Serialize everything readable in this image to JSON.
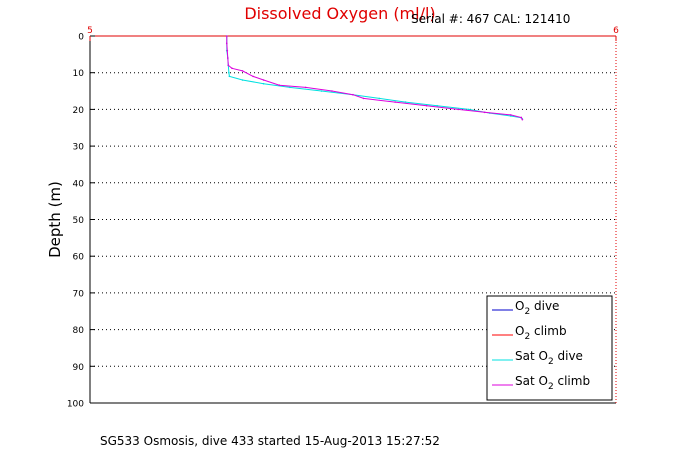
{
  "chart_data": {
    "type": "line",
    "title": "Dissolved Oxygen (ml/l)",
    "serial_text": "Serial #: 467  CAL: 121410",
    "footer": "SG533 Osmosis, dive 433 started 15-Aug-2013 15:27:52",
    "xlabel": "",
    "ylabel": "Depth (m)",
    "xlim": [
      5,
      6
    ],
    "ylim": [
      0,
      100
    ],
    "y_reversed": true,
    "x_ticks": [
      "5",
      "6"
    ],
    "y_ticks": [
      "0",
      "10",
      "20",
      "30",
      "40",
      "50",
      "60",
      "70",
      "80",
      "90",
      "100"
    ],
    "grid": "horizontal dotted",
    "legend_position": "bottom-right",
    "colors": {
      "title": "#e00000",
      "top_axis": "#e00000",
      "o2_dive": "#0000cc",
      "o2_climb": "#ff0000",
      "sat_dive": "#00e0e0",
      "sat_climb": "#dd00dd"
    },
    "series": [
      {
        "name": "O2 dive",
        "name_main": "O",
        "name_sub": "2",
        "name_rest": " dive",
        "color": "#0000cc",
        "points": []
      },
      {
        "name": "O2 climb",
        "name_main": "O",
        "name_sub": "2",
        "name_rest": " climb",
        "color": "#ff0000",
        "points": []
      },
      {
        "name": "Sat O2 dive",
        "name_main": "Sat O",
        "name_sub": "2",
        "name_rest": " dive",
        "color": "#00e0e0",
        "points": [
          [
            5.26,
            0
          ],
          [
            5.26,
            2
          ],
          [
            5.26,
            4
          ],
          [
            5.262,
            6
          ],
          [
            5.263,
            8
          ],
          [
            5.264,
            10
          ],
          [
            5.265,
            11
          ],
          [
            5.29,
            12
          ],
          [
            5.33,
            13
          ],
          [
            5.38,
            14
          ],
          [
            5.44,
            15
          ],
          [
            5.5,
            16
          ],
          [
            5.55,
            17
          ],
          [
            5.6,
            18
          ],
          [
            5.66,
            19
          ],
          [
            5.72,
            20
          ],
          [
            5.76,
            21
          ],
          [
            5.8,
            21.8
          ],
          [
            5.82,
            22.3
          ],
          [
            5.822,
            22.6
          ]
        ]
      },
      {
        "name": "Sat O2 climb",
        "name_main": "Sat O",
        "name_sub": "2",
        "name_rest": " climb",
        "color": "#dd00dd",
        "points": [
          [
            5.26,
            0
          ],
          [
            5.26,
            2
          ],
          [
            5.261,
            4
          ],
          [
            5.262,
            6
          ],
          [
            5.263,
            8
          ],
          [
            5.27,
            8.8
          ],
          [
            5.29,
            9.5
          ],
          [
            5.31,
            11
          ],
          [
            5.33,
            12
          ],
          [
            5.36,
            13.4
          ],
          [
            5.41,
            14
          ],
          [
            5.46,
            15
          ],
          [
            5.5,
            16
          ],
          [
            5.52,
            17
          ],
          [
            5.58,
            18
          ],
          [
            5.64,
            19
          ],
          [
            5.7,
            20
          ],
          [
            5.75,
            20.8
          ],
          [
            5.8,
            21.5
          ],
          [
            5.82,
            22.2
          ],
          [
            5.822,
            22.8
          ]
        ]
      }
    ]
  }
}
